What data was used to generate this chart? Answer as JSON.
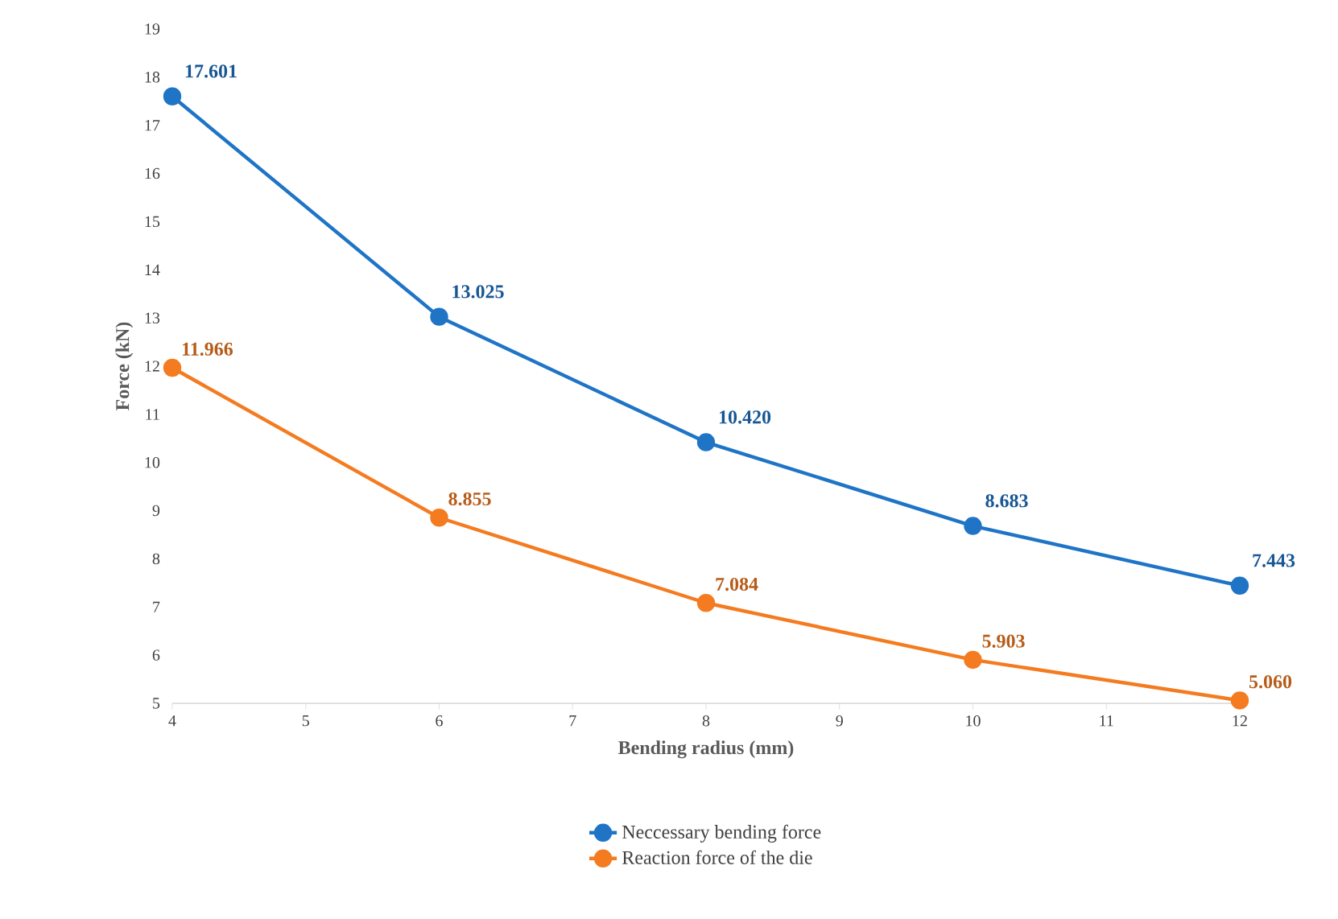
{
  "chart_data": {
    "type": "line",
    "xlabel": "Bending radius (mm)",
    "ylabel": "Force (kN)",
    "x": [
      4,
      6,
      8,
      10,
      12
    ],
    "xlim": [
      4,
      12
    ],
    "xticks": [
      4,
      5,
      6,
      7,
      8,
      9,
      10,
      11,
      12
    ],
    "ylim": [
      5,
      19
    ],
    "yticks": [
      5,
      6,
      7,
      8,
      9,
      10,
      11,
      12,
      13,
      14,
      15,
      16,
      17,
      18,
      19
    ],
    "grid": false,
    "legend": "bottom",
    "marker": "circle",
    "line_style": "solid",
    "series": [
      {
        "name": "Neccessary bending force",
        "color": "#1f74c6",
        "values": [
          17.601,
          13.025,
          10.42,
          8.683,
          7.443
        ],
        "value_labels": [
          "17.601",
          "13.025",
          "10.420",
          "8.683",
          "7.443"
        ]
      },
      {
        "name": "Reaction force of the die",
        "color": "#f47b20",
        "values": [
          11.966,
          8.855,
          7.084,
          5.903,
          5.06
        ],
        "value_labels": [
          "11.966",
          "8.855",
          "7.084",
          "5.903",
          "5.060"
        ]
      }
    ]
  }
}
